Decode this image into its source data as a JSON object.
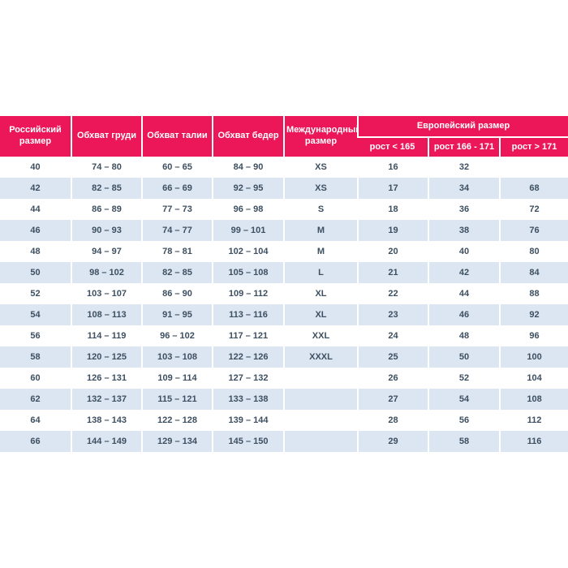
{
  "page": {
    "background": "#ffffff"
  },
  "table": {
    "title": "size-chart",
    "theme": {
      "header_bg": "#ec1758",
      "header_text": "#ffffff",
      "row_bg": "#ffffff",
      "row_alt_bg": "#dce6f2",
      "cell_text": "#3d4f60"
    },
    "headers": {
      "russian_size": "Российский размер",
      "chest": "Обхват груди",
      "waist": "Обхват талии",
      "hips": "Обхват бедер",
      "international_size": "Международный размер",
      "european_size": "Европейский размер",
      "height_lt_165": "рост < 165",
      "height_166_171": "рост 166 - 171",
      "height_gt_171": "рост > 171"
    },
    "rows": [
      [
        "40",
        "74 – 80",
        "60 – 65",
        "84 – 90",
        "XS",
        "16",
        "32",
        ""
      ],
      [
        "42",
        "82 – 85",
        "66 – 69",
        "92 – 95",
        "XS",
        "17",
        "34",
        "68"
      ],
      [
        "44",
        "86 – 89",
        "77 – 73",
        "96 – 98",
        "S",
        "18",
        "36",
        "72"
      ],
      [
        "46",
        "90 – 93",
        "74 – 77",
        "99 – 101",
        "M",
        "19",
        "38",
        "76"
      ],
      [
        "48",
        "94 – 97",
        "78 – 81",
        "102 – 104",
        "M",
        "20",
        "40",
        "80"
      ],
      [
        "50",
        "98 – 102",
        "82 – 85",
        "105 – 108",
        "L",
        "21",
        "42",
        "84"
      ],
      [
        "52",
        "103 – 107",
        "86 – 90",
        "109 – 112",
        "XL",
        "22",
        "44",
        "88"
      ],
      [
        "54",
        "108 – 113",
        "91 – 95",
        "113 – 116",
        "XL",
        "23",
        "46",
        "92"
      ],
      [
        "56",
        "114 – 119",
        "96 – 102",
        "117 – 121",
        "XXL",
        "24",
        "48",
        "96"
      ],
      [
        "58",
        "120 – 125",
        "103 – 108",
        "122 – 126",
        "XXXL",
        "25",
        "50",
        "100"
      ],
      [
        "60",
        "126 – 131",
        "109 – 114",
        "127 – 132",
        "",
        "26",
        "52",
        "104"
      ],
      [
        "62",
        "132 – 137",
        "115 – 121",
        "133 – 138",
        "",
        "27",
        "54",
        "108"
      ],
      [
        "64",
        "138 – 143",
        "122 – 128",
        "139 – 144",
        "",
        "28",
        "56",
        "112"
      ],
      [
        "66",
        "144 – 149",
        "129 – 134",
        "145 – 150",
        "",
        "29",
        "58",
        "116"
      ]
    ]
  }
}
